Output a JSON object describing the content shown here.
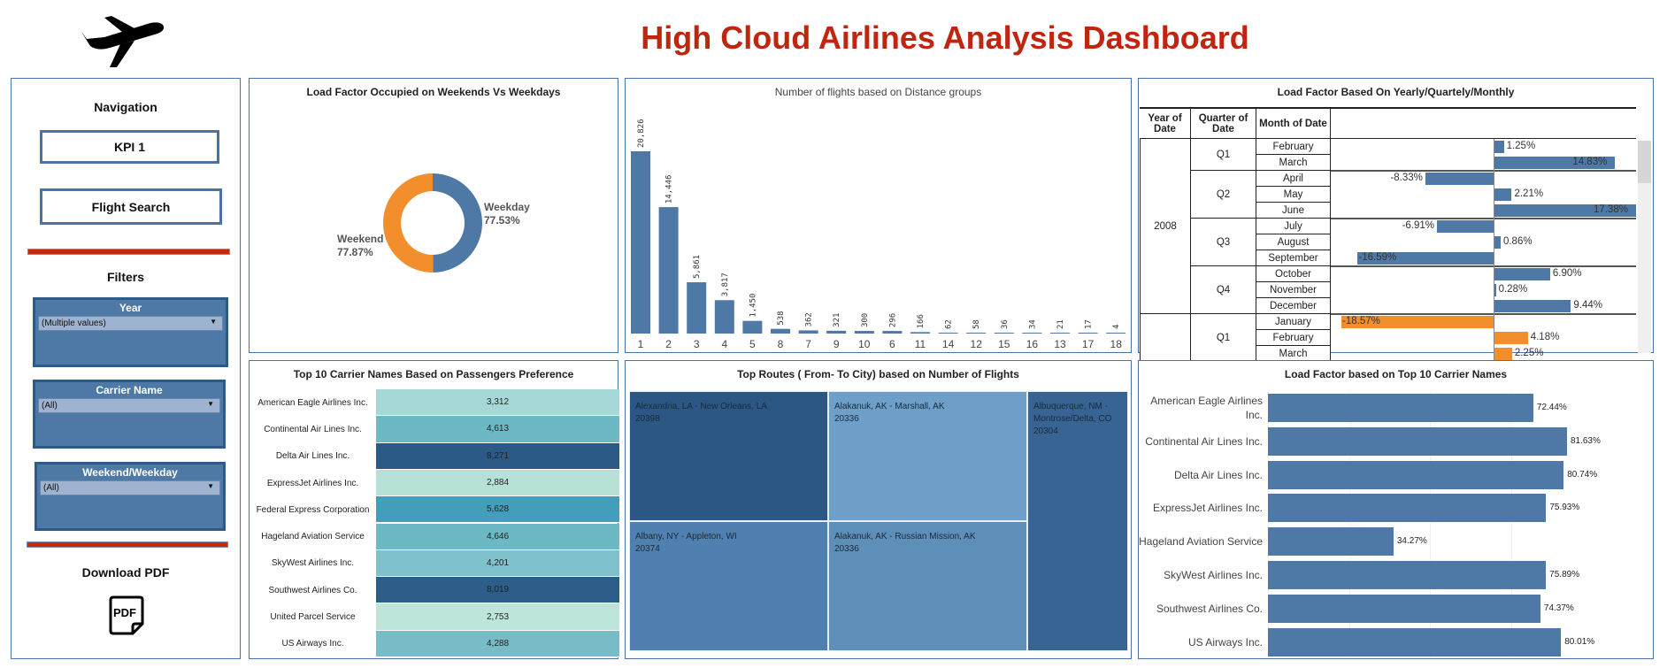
{
  "header": {
    "title": "High Cloud Airlines Analysis Dashboard"
  },
  "sidebar": {
    "navigation_label": "Navigation",
    "kpi_button": "KPI 1",
    "flight_search_button": "Flight Search",
    "filters_label": "Filters",
    "filters": [
      {
        "label": "Year",
        "value": "(Multiple values)"
      },
      {
        "label": "Carrier Name",
        "value": "(All)"
      },
      {
        "label": "Weekend/Weekday",
        "value": "(All)"
      }
    ],
    "download_label": "Download PDF",
    "pdf_icon_text": "PDF"
  },
  "colors": {
    "blue": "#4e79a7",
    "orange": "#f28e2b",
    "title_red": "#c0260f",
    "accent_bar": "#c42b0c"
  },
  "chart_data": [
    {
      "type": "pie",
      "title": "Load Factor Occupied on Weekends Vs Weekdays",
      "slices": [
        {
          "name": "Weekday",
          "label": "77.53%",
          "value": 77.53,
          "color": "#4e79a7"
        },
        {
          "name": "Weekend",
          "label": "77.87%",
          "value": 77.87,
          "color": "#f28e2b"
        }
      ]
    },
    {
      "type": "bar",
      "title": "Number of flights based on Distance groups",
      "categories": [
        "1",
        "2",
        "3",
        "4",
        "5",
        "8",
        "7",
        "9",
        "10",
        "6",
        "11",
        "14",
        "12",
        "15",
        "16",
        "13",
        "17",
        "18"
      ],
      "values": [
        20826,
        14446,
        5861,
        3817,
        1450,
        538,
        362,
        321,
        300,
        296,
        166,
        62,
        58,
        36,
        34,
        21,
        17,
        4
      ],
      "labels": [
        "20,826",
        "14,446",
        "5,861",
        "3,817",
        "1,450",
        "538",
        "362",
        "321",
        "300",
        "296",
        "166",
        "62",
        "58",
        "36",
        "34",
        "21",
        "17",
        "4"
      ],
      "color": "#4e79a7"
    },
    {
      "type": "table",
      "title": "Load Factor Based On Yearly/Quartely/Monthly",
      "columns": [
        "Year of Date",
        "Quarter of Date",
        "Month of Date"
      ],
      "years": [
        {
          "year": "2008",
          "color": "#4e79a7",
          "quarters": [
            {
              "q": "Q1",
              "months": [
                {
                  "m": "February",
                  "v": 1.25,
                  "label": "1.25%"
                },
                {
                  "m": "March",
                  "v": 14.83,
                  "label": "14.83%"
                }
              ]
            },
            {
              "q": "Q2",
              "months": [
                {
                  "m": "April",
                  "v": -8.33,
                  "label": "-8.33%"
                },
                {
                  "m": "May",
                  "v": 2.21,
                  "label": "2.21%"
                },
                {
                  "m": "June",
                  "v": 17.38,
                  "label": "17.38%"
                }
              ]
            },
            {
              "q": "Q3",
              "months": [
                {
                  "m": "July",
                  "v": -6.91,
                  "label": "-6.91%"
                },
                {
                  "m": "August",
                  "v": 0.86,
                  "label": "0.86%"
                },
                {
                  "m": "September",
                  "v": -16.59,
                  "label": "-16.59%"
                }
              ]
            },
            {
              "q": "Q4",
              "months": [
                {
                  "m": "October",
                  "v": 6.9,
                  "label": "6.90%"
                },
                {
                  "m": "November",
                  "v": 0.28,
                  "label": "0.28%"
                },
                {
                  "m": "December",
                  "v": 9.44,
                  "label": "9.44%"
                }
              ]
            }
          ]
        },
        {
          "year": "",
          "color": "#f28e2b",
          "quarters": [
            {
              "q": "Q1",
              "months": [
                {
                  "m": "January",
                  "v": -18.57,
                  "label": "-18.57%"
                },
                {
                  "m": "February",
                  "v": 4.18,
                  "label": "4.18%"
                },
                {
                  "m": "March",
                  "v": 2.25,
                  "label": "2.25%"
                }
              ]
            }
          ]
        }
      ]
    },
    {
      "type": "heatmap",
      "title": "Top 10 Carrier Names Based on Passengers Preference",
      "rows": [
        {
          "name": "American Eagle Airlines Inc.",
          "value": "3,312",
          "color": "#a5d8d6"
        },
        {
          "name": "Continental Air Lines Inc.",
          "value": "4,613",
          "color": "#6cb8c5"
        },
        {
          "name": "Delta Air Lines Inc.",
          "value": "8,271",
          "color": "#2c5a87"
        },
        {
          "name": "ExpressJet Airlines Inc.",
          "value": "2,884",
          "color": "#b7e1d6"
        },
        {
          "name": "Federal Express Corporation",
          "value": "5,628",
          "color": "#429ebb"
        },
        {
          "name": "Hageland Aviation Service",
          "value": "4,646",
          "color": "#6cb8c5"
        },
        {
          "name": "SkyWest Airlines Inc.",
          "value": "4,201",
          "color": "#7fc2cc"
        },
        {
          "name": "Southwest Airlines Co.",
          "value": "8,019",
          "color": "#2d5e8a"
        },
        {
          "name": "United Parcel Service",
          "value": "2,753",
          "color": "#bde5da"
        },
        {
          "name": "US Airways Inc.",
          "value": "4,288",
          "color": "#78bcc8"
        }
      ]
    },
    {
      "type": "treemap",
      "title": "Top Routes ( From- To City) based on Number of Flights",
      "items": [
        {
          "route": "Alexandria, LA - New Orleans, LA",
          "value": "20398",
          "color": "#2c5784"
        },
        {
          "route": "Albany, NY - Appleton, WI",
          "value": "20374",
          "color": "#4f80af"
        },
        {
          "route": "Alakanuk, AK - Marshall, AK",
          "value": "20336",
          "color": "#6e9fc8"
        },
        {
          "route": "Alakanuk, AK - Russian Mission, AK",
          "value": "20336",
          "color": "#5e8fb8"
        },
        {
          "route": "Albuquerque, NM - Montrose/Delta, CO",
          "value": "20304",
          "color": "#376493"
        }
      ]
    },
    {
      "type": "bar",
      "title": "Load Factor based on Top 10 Carrier Names",
      "orientation": "horizontal",
      "categories": [
        "American Eagle Airlines Inc.",
        "Continental Air Lines Inc.",
        "Delta Air Lines Inc.",
        "ExpressJet Airlines Inc.",
        "Hageland Aviation Service",
        "SkyWest Airlines Inc.",
        "Southwest Airlines Co.",
        "US Airways Inc."
      ],
      "values": [
        72.44,
        81.63,
        80.74,
        75.93,
        34.27,
        75.89,
        74.37,
        80.01
      ],
      "labels": [
        "72.44%",
        "81.63%",
        "80.74%",
        "75.93%",
        "34.27%",
        "75.89%",
        "74.37%",
        "80.01%"
      ],
      "color": "#4e79a7"
    }
  ]
}
